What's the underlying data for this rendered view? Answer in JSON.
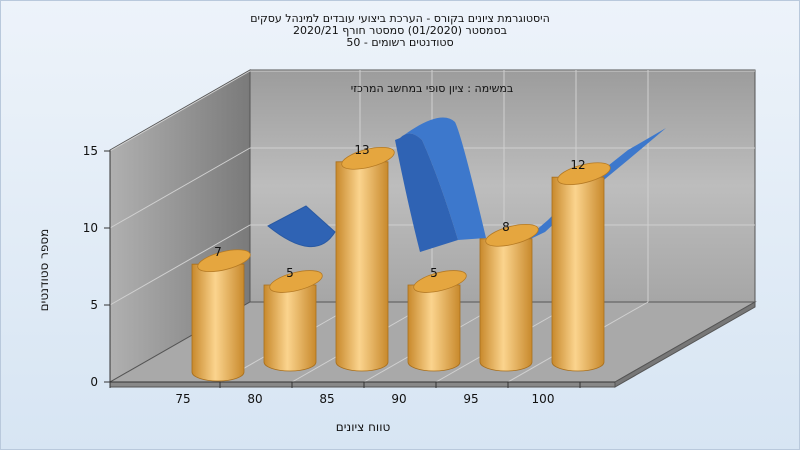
{
  "chart_data": {
    "type": "bar",
    "title_lines": [
      "היסטוגרמת ציונים בקורס - הערכת ביצועי עובדים למינהל עסקים",
      "בסמסטר  (01/2020)  סמסטר חורף  2020/21",
      "סטודנטים רשומים - 50"
    ],
    "subtitle": "במשימה : ציון סופי במחשב המרכזי",
    "xlabel": "טווח ציונים",
    "ylabel": "מספר סטודנטים",
    "x_ticks": [
      "75",
      "80",
      "85",
      "90",
      "95",
      "100"
    ],
    "y_ticks": [
      "0",
      "5",
      "10",
      "15"
    ],
    "ylim": [
      0,
      15
    ],
    "categories": [
      "75",
      "80",
      "85",
      "90",
      "95",
      "100"
    ],
    "values": [
      7,
      5,
      13,
      5,
      8,
      12
    ],
    "value_labels": [
      "7",
      "5",
      "13",
      "5",
      "8",
      "12"
    ],
    "curve": "normal-distribution-ribbon",
    "grid": true,
    "colors": {
      "bar": "#e0a845",
      "bar_light": "#fbd48e",
      "bar_dark": "#c8892c",
      "curve": "#3a74c8",
      "back_wall": "#b4b4b4",
      "side_wall": "#8a8a8a",
      "floor": "#a9a9a9"
    }
  }
}
